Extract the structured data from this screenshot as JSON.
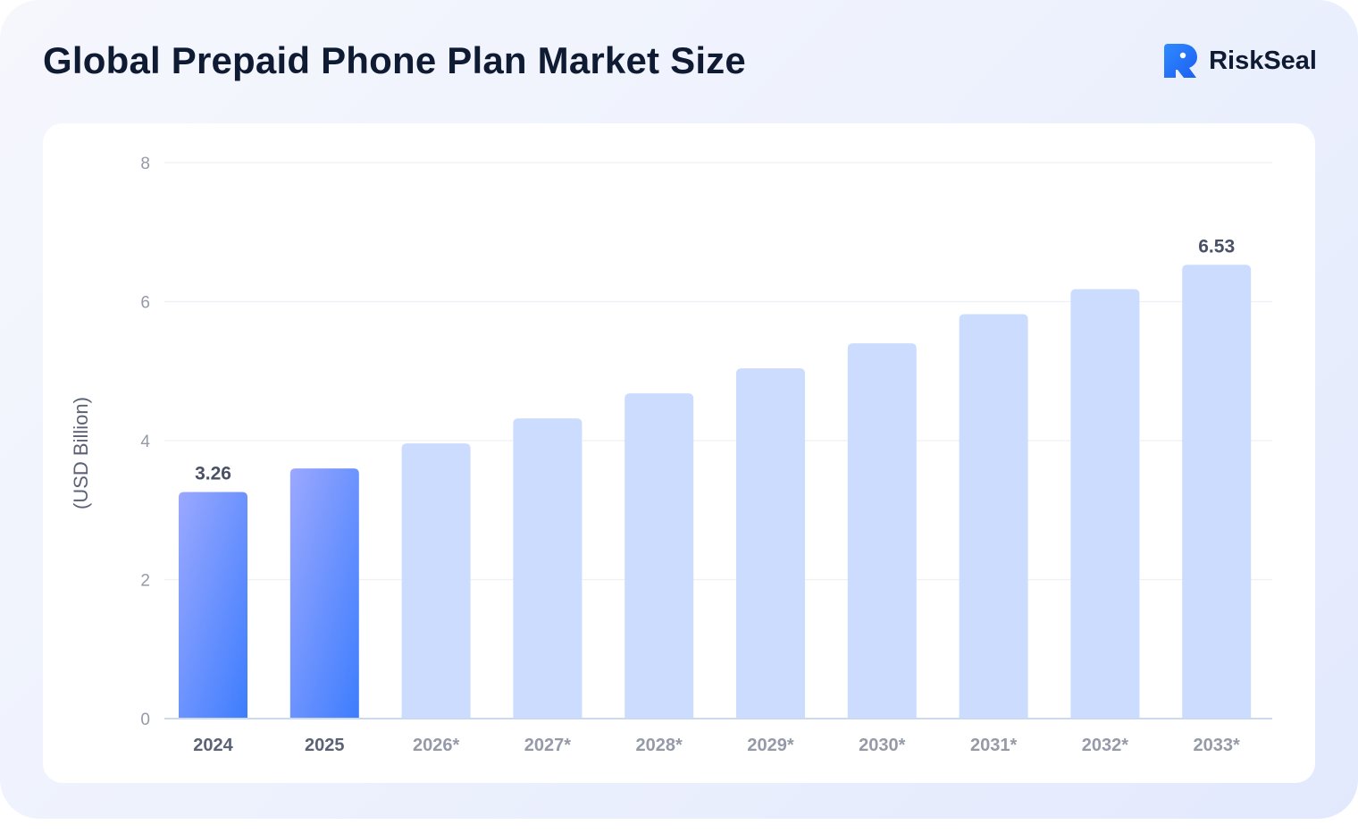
{
  "header": {
    "title": "Global Prepaid Phone Plan Market Size",
    "brand_name": "RiskSeal",
    "brand_icon": "riskseal-logo-icon"
  },
  "colors": {
    "actual_top": "#9ba8ff",
    "actual_bottom": "#3d7dfd",
    "forecast": "#cbdcfe",
    "grid": "#edf0f6",
    "axis": "#ccd9f2",
    "text_dark": "#0f1b33",
    "text_muted": "#959aa8"
  },
  "chart_data": {
    "type": "bar",
    "title": "Global Prepaid Phone Plan Market Size",
    "ylabel": "(USD Billion)",
    "xlabel": "",
    "ylim": [
      0,
      8
    ],
    "yticks": [
      "0",
      "2",
      "4",
      "6",
      "8"
    ],
    "grid": true,
    "categories": [
      "2024",
      "2025",
      "2026*",
      "2027*",
      "2028*",
      "2029*",
      "2030*",
      "2031*",
      "2032*",
      "2033*"
    ],
    "values": [
      3.26,
      3.6,
      3.96,
      4.32,
      4.68,
      5.04,
      5.4,
      5.82,
      6.18,
      6.53
    ],
    "forecast": [
      false,
      false,
      true,
      true,
      true,
      true,
      true,
      true,
      true,
      true
    ],
    "data_labels": [
      {
        "index": 0,
        "text": "3.26"
      },
      {
        "index": 9,
        "text": "6.53"
      }
    ]
  }
}
